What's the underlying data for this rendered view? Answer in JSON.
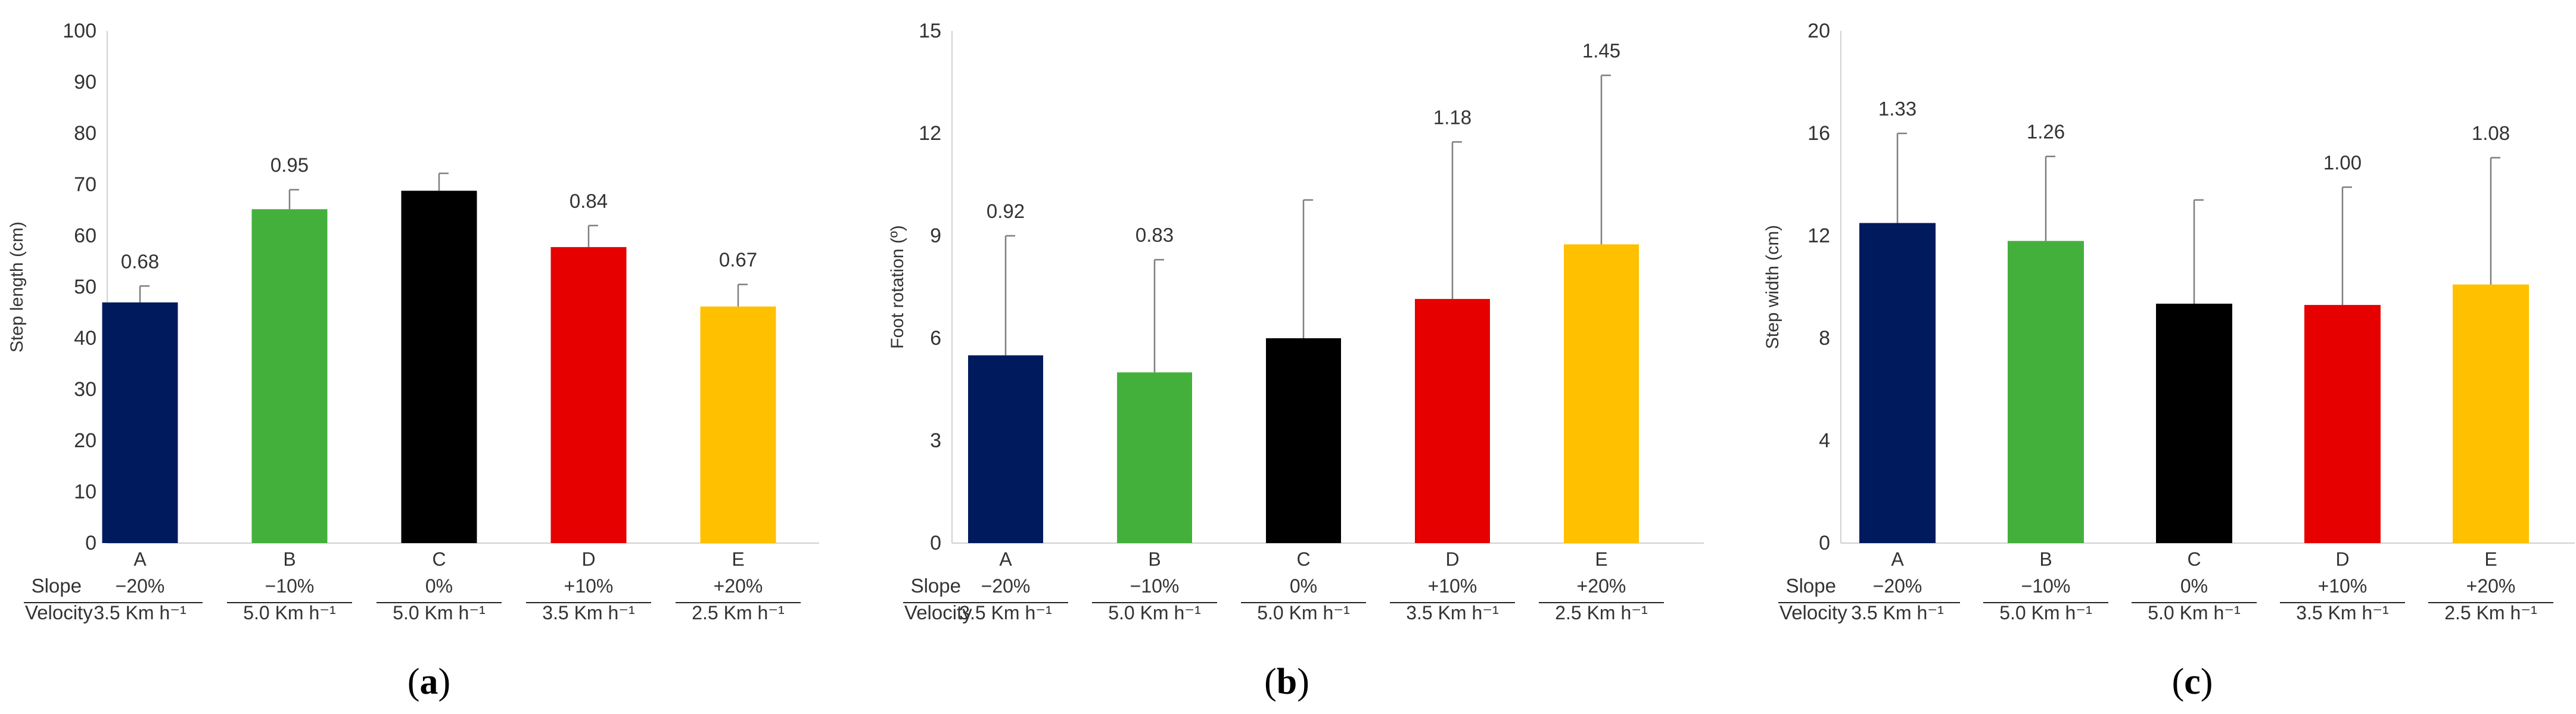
{
  "chart_data": [
    {
      "type": "bar",
      "panel_label": "a",
      "ylabel": "Step length (cm)",
      "ylim": [
        0,
        100
      ],
      "yticks": [
        0,
        10,
        20,
        30,
        40,
        50,
        60,
        70,
        80,
        90,
        100
      ],
      "categories": [
        "A",
        "B",
        "C",
        "D",
        "E"
      ],
      "slope": [
        "−20%",
        "−10%",
        "0%",
        "+10%",
        "+20%"
      ],
      "velocity": [
        "3.5 Km h⁻¹",
        "5.0 Km h⁻¹",
        "5.0 Km h⁻¹",
        "3.5 Km h⁻¹",
        "2.5 Km h⁻¹"
      ],
      "values": [
        47,
        65.2,
        68.8,
        57.8,
        46.2
      ],
      "errors": [
        3.2,
        3.8,
        3.4,
        4.2,
        4.3
      ],
      "data_labels": [
        "0.68",
        "0.95",
        "",
        "0.84",
        "0.67"
      ],
      "colors": [
        "#001a5e",
        "#44b03c",
        "#000000",
        "#e60000",
        "#ffc000"
      ]
    },
    {
      "type": "bar",
      "panel_label": "b",
      "ylabel": "Foot rotation (º)",
      "ylim": [
        0,
        15
      ],
      "yticks": [
        0,
        3,
        6,
        9,
        12,
        15
      ],
      "categories": [
        "A",
        "B",
        "C",
        "D",
        "E"
      ],
      "slope": [
        "−20%",
        "−10%",
        "0%",
        "+10%",
        "+20%"
      ],
      "velocity": [
        "3.5 Km h⁻¹",
        "5.0 Km h⁻¹",
        "5.0 Km h⁻¹",
        "3.5 Km h⁻¹",
        "2.5 Km h⁻¹"
      ],
      "values": [
        5.5,
        5.0,
        6.0,
        7.15,
        8.75
      ],
      "errors": [
        3.5,
        3.3,
        4.05,
        4.6,
        4.95
      ],
      "data_labels": [
        "0.92",
        "0.83",
        "",
        "1.18",
        "1.45"
      ],
      "colors": [
        "#001a5e",
        "#44b03c",
        "#000000",
        "#e60000",
        "#ffc000"
      ]
    },
    {
      "type": "bar",
      "panel_label": "c",
      "ylabel": "Step width (cm)",
      "ylim": [
        0,
        20
      ],
      "yticks": [
        0,
        4,
        8,
        12,
        16,
        20
      ],
      "categories": [
        "A",
        "B",
        "C",
        "D",
        "E"
      ],
      "slope": [
        "−20%",
        "−10%",
        "0%",
        "+10%",
        "+20%"
      ],
      "velocity": [
        "3.5 Km h⁻¹",
        "5.0 Km h⁻¹",
        "5.0 Km h⁻¹",
        "3.5 Km h⁻¹",
        "2.5 Km h⁻¹"
      ],
      "values": [
        12.5,
        11.8,
        9.35,
        9.3,
        10.1
      ],
      "errors": [
        3.5,
        3.3,
        4.05,
        4.6,
        4.95
      ],
      "data_labels": [
        "1.33",
        "1.26",
        "",
        "1.00",
        "1.08"
      ],
      "colors": [
        "#001a5e",
        "#44b03c",
        "#000000",
        "#e60000",
        "#ffc000"
      ]
    }
  ],
  "row_labels": {
    "slope": "Slope",
    "velocity": "Velocity"
  }
}
